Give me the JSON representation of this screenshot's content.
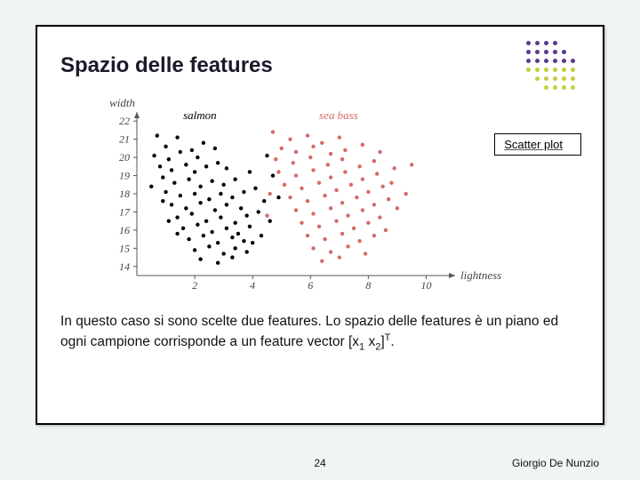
{
  "title": "Spazio delle features",
  "annotation": "Scatter plot",
  "body_text_prefix": "In questo caso si sono scelte due features. Lo spazio delle features è un piano ed ogni campione corrisponde a un feature vector [x",
  "body_text_sub1": "1",
  "body_text_mid": " x",
  "body_text_sub2": "2",
  "body_text_suffix": "]",
  "body_text_sup": "T",
  "body_text_end": ".",
  "page_number": "24",
  "author": "Giorgio De Nunzio",
  "logo": {
    "rows": 6,
    "cols": 6,
    "colors": [
      [
        "#5b3a8e",
        "#5b3a8e",
        "#5b3a8e",
        "#5b3a8e",
        "",
        ""
      ],
      [
        "#5b3a8e",
        "#5b3a8e",
        "#5b3a8e",
        "#5b3a8e",
        "#5b3a8e",
        ""
      ],
      [
        "#5b3a8e",
        "#5b3a8e",
        "#5b3a8e",
        "#5b3a8e",
        "#5b3a8e",
        "#5b3a8e"
      ],
      [
        "#c3cf3a",
        "#c3cf3a",
        "#c3cf3a",
        "#c3cf3a",
        "#c3cf3a",
        "#c3cf3a"
      ],
      [
        "",
        "#c3cf3a",
        "#c3cf3a",
        "#c3cf3a",
        "#c3cf3a",
        "#c3cf3a"
      ],
      [
        "",
        "",
        "#c3cf3a",
        "#c3cf3a",
        "#c3cf3a",
        "#c3cf3a"
      ]
    ]
  },
  "chart": {
    "type": "scatter",
    "xlabel": "lightness",
    "ylabel": "width",
    "xlim": [
      0,
      11
    ],
    "ylim": [
      13.5,
      22.5
    ],
    "xticks": [
      2,
      4,
      6,
      8,
      10
    ],
    "yticks": [
      14,
      15,
      16,
      17,
      18,
      19,
      20,
      21,
      22
    ],
    "background_color": "#ffffff",
    "axis_color": "#555555",
    "marker_size": 2.2,
    "series": [
      {
        "name": "salmon",
        "label": "salmon",
        "label_pos": [
          1.6,
          22.1
        ],
        "color": "#000000",
        "points": [
          [
            0.7,
            21.2
          ],
          [
            1.4,
            21.1
          ],
          [
            1.0,
            20.6
          ],
          [
            0.6,
            20.1
          ],
          [
            1.1,
            19.9
          ],
          [
            1.5,
            20.3
          ],
          [
            1.9,
            20.4
          ],
          [
            2.3,
            20.8
          ],
          [
            2.7,
            20.5
          ],
          [
            2.1,
            20.0
          ],
          [
            0.8,
            19.5
          ],
          [
            1.2,
            19.3
          ],
          [
            1.7,
            19.6
          ],
          [
            2.0,
            19.2
          ],
          [
            2.4,
            19.5
          ],
          [
            2.8,
            19.7
          ],
          [
            3.1,
            19.4
          ],
          [
            0.9,
            18.9
          ],
          [
            1.3,
            18.6
          ],
          [
            1.8,
            18.8
          ],
          [
            2.2,
            18.4
          ],
          [
            2.6,
            18.7
          ],
          [
            3.0,
            18.5
          ],
          [
            3.4,
            18.8
          ],
          [
            1.0,
            18.1
          ],
          [
            1.5,
            17.9
          ],
          [
            2.0,
            18.0
          ],
          [
            2.5,
            17.7
          ],
          [
            2.9,
            18.0
          ],
          [
            3.3,
            17.8
          ],
          [
            3.7,
            18.1
          ],
          [
            1.2,
            17.4
          ],
          [
            1.7,
            17.2
          ],
          [
            2.2,
            17.5
          ],
          [
            2.7,
            17.1
          ],
          [
            3.1,
            17.4
          ],
          [
            3.6,
            17.2
          ],
          [
            1.4,
            16.7
          ],
          [
            1.9,
            16.9
          ],
          [
            2.4,
            16.5
          ],
          [
            2.9,
            16.7
          ],
          [
            3.4,
            16.4
          ],
          [
            3.8,
            16.8
          ],
          [
            4.2,
            17.0
          ],
          [
            1.6,
            16.1
          ],
          [
            2.1,
            16.3
          ],
          [
            2.6,
            15.9
          ],
          [
            3.1,
            16.1
          ],
          [
            3.5,
            15.8
          ],
          [
            3.9,
            16.2
          ],
          [
            1.8,
            15.5
          ],
          [
            2.3,
            15.7
          ],
          [
            2.8,
            15.3
          ],
          [
            3.3,
            15.6
          ],
          [
            3.7,
            15.4
          ],
          [
            2.0,
            14.9
          ],
          [
            2.5,
            15.1
          ],
          [
            3.0,
            14.7
          ],
          [
            3.4,
            15.0
          ],
          [
            4.0,
            15.3
          ],
          [
            2.2,
            14.4
          ],
          [
            2.8,
            14.2
          ],
          [
            3.3,
            14.5
          ],
          [
            3.8,
            14.8
          ],
          [
            4.3,
            15.7
          ],
          [
            4.6,
            16.5
          ],
          [
            4.1,
            18.3
          ],
          [
            4.4,
            17.6
          ],
          [
            4.7,
            19.0
          ],
          [
            3.9,
            19.2
          ],
          [
            4.5,
            20.1
          ],
          [
            0.5,
            18.4
          ],
          [
            0.9,
            17.6
          ],
          [
            1.1,
            16.5
          ],
          [
            1.4,
            15.8
          ],
          [
            4.9,
            17.8
          ]
        ]
      },
      {
        "name": "sea_bass",
        "label": "sea bass",
        "label_pos": [
          6.3,
          22.1
        ],
        "color": "#d46a6a",
        "points": [
          [
            4.7,
            21.4
          ],
          [
            5.3,
            21.0
          ],
          [
            5.9,
            21.2
          ],
          [
            6.4,
            20.8
          ],
          [
            7.0,
            21.1
          ],
          [
            5.0,
            20.5
          ],
          [
            5.5,
            20.3
          ],
          [
            6.1,
            20.6
          ],
          [
            6.7,
            20.2
          ],
          [
            7.2,
            20.4
          ],
          [
            7.8,
            20.7
          ],
          [
            8.4,
            20.3
          ],
          [
            4.8,
            19.9
          ],
          [
            5.4,
            19.7
          ],
          [
            6.0,
            20.0
          ],
          [
            6.6,
            19.6
          ],
          [
            7.1,
            19.9
          ],
          [
            7.7,
            19.5
          ],
          [
            8.2,
            19.8
          ],
          [
            4.9,
            19.2
          ],
          [
            5.5,
            19.0
          ],
          [
            6.1,
            19.3
          ],
          [
            6.7,
            18.9
          ],
          [
            7.2,
            19.2
          ],
          [
            7.8,
            18.8
          ],
          [
            8.3,
            19.1
          ],
          [
            8.9,
            19.4
          ],
          [
            5.1,
            18.5
          ],
          [
            5.7,
            18.3
          ],
          [
            6.3,
            18.6
          ],
          [
            6.9,
            18.2
          ],
          [
            7.4,
            18.5
          ],
          [
            8.0,
            18.1
          ],
          [
            8.5,
            18.4
          ],
          [
            5.3,
            17.8
          ],
          [
            5.9,
            17.6
          ],
          [
            6.5,
            17.9
          ],
          [
            7.1,
            17.5
          ],
          [
            7.6,
            17.8
          ],
          [
            8.2,
            17.4
          ],
          [
            8.7,
            17.7
          ],
          [
            9.3,
            18.0
          ],
          [
            5.5,
            17.1
          ],
          [
            6.1,
            16.9
          ],
          [
            6.7,
            17.2
          ],
          [
            7.3,
            16.8
          ],
          [
            7.8,
            17.1
          ],
          [
            8.4,
            16.7
          ],
          [
            5.7,
            16.4
          ],
          [
            6.3,
            16.2
          ],
          [
            6.9,
            16.5
          ],
          [
            7.5,
            16.1
          ],
          [
            8.0,
            16.4
          ],
          [
            8.6,
            16.0
          ],
          [
            5.9,
            15.7
          ],
          [
            6.5,
            15.5
          ],
          [
            7.1,
            15.8
          ],
          [
            7.7,
            15.4
          ],
          [
            8.2,
            15.7
          ],
          [
            6.1,
            15.0
          ],
          [
            6.7,
            14.8
          ],
          [
            7.3,
            15.1
          ],
          [
            7.9,
            14.7
          ],
          [
            6.4,
            14.3
          ],
          [
            7.0,
            14.5
          ],
          [
            4.6,
            18.0
          ],
          [
            4.5,
            16.8
          ],
          [
            9.0,
            17.2
          ],
          [
            9.5,
            19.6
          ],
          [
            8.8,
            18.6
          ]
        ]
      }
    ]
  }
}
